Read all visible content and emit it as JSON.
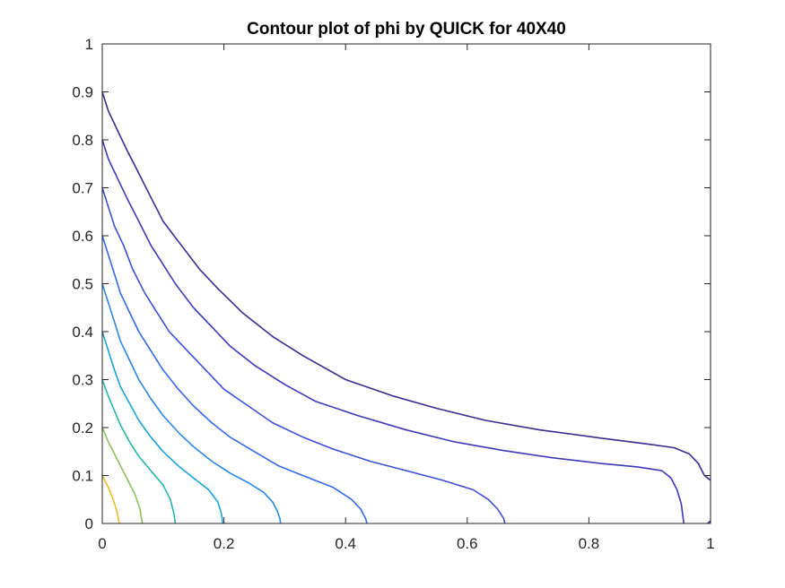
{
  "chart_data": {
    "type": "contour",
    "title": "Contour plot of phi by QUICK for 40X40",
    "xlabel": "",
    "ylabel": "",
    "xlim": [
      0,
      1
    ],
    "ylim": [
      0,
      1
    ],
    "xticks": [
      0,
      0.2,
      0.4,
      0.6,
      0.8,
      1
    ],
    "xtick_labels": [
      "0",
      "0.2",
      "0.4",
      "0.6",
      "0.8",
      "1"
    ],
    "yticks": [
      0,
      0.1,
      0.2,
      0.3,
      0.4,
      0.5,
      0.6,
      0.7,
      0.8,
      0.9,
      1
    ],
    "ytick_labels": [
      "0",
      "0.1",
      "0.2",
      "0.3",
      "0.4",
      "0.5",
      "0.6",
      "0.7",
      "0.8",
      "0.9",
      "1"
    ],
    "grid": false,
    "series": [
      {
        "color": "#3c2a92",
        "points": [
          [
            0,
            0.9
          ],
          [
            0.01,
            0.86
          ],
          [
            0.025,
            0.82
          ],
          [
            0.04,
            0.78
          ],
          [
            0.06,
            0.73
          ],
          [
            0.08,
            0.68
          ],
          [
            0.1,
            0.63
          ],
          [
            0.13,
            0.58
          ],
          [
            0.16,
            0.53
          ],
          [
            0.19,
            0.49
          ],
          [
            0.23,
            0.44
          ],
          [
            0.28,
            0.39
          ],
          [
            0.33,
            0.35
          ],
          [
            0.4,
            0.3
          ],
          [
            0.48,
            0.265
          ],
          [
            0.55,
            0.24
          ],
          [
            0.63,
            0.215
          ],
          [
            0.72,
            0.195
          ],
          [
            0.82,
            0.178
          ],
          [
            0.9,
            0.165
          ],
          [
            0.94,
            0.158
          ],
          [
            0.965,
            0.145
          ],
          [
            0.98,
            0.125
          ],
          [
            0.99,
            0.1
          ],
          [
            1,
            0.09
          ]
        ]
      },
      {
        "color": "#3e38b8",
        "points": [
          [
            0,
            0.8
          ],
          [
            0.01,
            0.76
          ],
          [
            0.025,
            0.72
          ],
          [
            0.04,
            0.68
          ],
          [
            0.06,
            0.63
          ],
          [
            0.08,
            0.58
          ],
          [
            0.1,
            0.54
          ],
          [
            0.12,
            0.5
          ],
          [
            0.15,
            0.45
          ],
          [
            0.18,
            0.41
          ],
          [
            0.21,
            0.37
          ],
          [
            0.25,
            0.33
          ],
          [
            0.3,
            0.29
          ],
          [
            0.35,
            0.255
          ],
          [
            0.42,
            0.225
          ],
          [
            0.5,
            0.195
          ],
          [
            0.58,
            0.17
          ],
          [
            0.66,
            0.152
          ],
          [
            0.74,
            0.137
          ],
          [
            0.82,
            0.125
          ],
          [
            0.88,
            0.118
          ],
          [
            0.92,
            0.11
          ],
          [
            0.935,
            0.095
          ],
          [
            0.945,
            0.07
          ],
          [
            0.952,
            0.04
          ],
          [
            0.955,
            0.01
          ],
          [
            0.956,
            0
          ]
        ]
      },
      {
        "color": "#3c4ed6",
        "points": [
          [
            0,
            0.7
          ],
          [
            0.01,
            0.66
          ],
          [
            0.02,
            0.62
          ],
          [
            0.035,
            0.58
          ],
          [
            0.05,
            0.53
          ],
          [
            0.07,
            0.48
          ],
          [
            0.09,
            0.44
          ],
          [
            0.11,
            0.4
          ],
          [
            0.14,
            0.36
          ],
          [
            0.17,
            0.32
          ],
          [
            0.2,
            0.28
          ],
          [
            0.24,
            0.245
          ],
          [
            0.28,
            0.21
          ],
          [
            0.33,
            0.18
          ],
          [
            0.38,
            0.155
          ],
          [
            0.44,
            0.13
          ],
          [
            0.5,
            0.11
          ],
          [
            0.56,
            0.09
          ],
          [
            0.61,
            0.07
          ],
          [
            0.635,
            0.05
          ],
          [
            0.65,
            0.03
          ],
          [
            0.66,
            0.01
          ],
          [
            0.662,
            0
          ]
        ]
      },
      {
        "color": "#3369e8",
        "points": [
          [
            0,
            0.6
          ],
          [
            0.01,
            0.56
          ],
          [
            0.02,
            0.52
          ],
          [
            0.03,
            0.48
          ],
          [
            0.045,
            0.44
          ],
          [
            0.06,
            0.4
          ],
          [
            0.08,
            0.36
          ],
          [
            0.1,
            0.32
          ],
          [
            0.125,
            0.28
          ],
          [
            0.15,
            0.245
          ],
          [
            0.18,
            0.21
          ],
          [
            0.21,
            0.18
          ],
          [
            0.25,
            0.15
          ],
          [
            0.29,
            0.12
          ],
          [
            0.34,
            0.095
          ],
          [
            0.38,
            0.075
          ],
          [
            0.41,
            0.05
          ],
          [
            0.425,
            0.03
          ],
          [
            0.433,
            0.01
          ],
          [
            0.435,
            0
          ]
        ]
      },
      {
        "color": "#2a86e6",
        "points": [
          [
            0,
            0.5
          ],
          [
            0.01,
            0.46
          ],
          [
            0.02,
            0.42
          ],
          [
            0.03,
            0.38
          ],
          [
            0.045,
            0.34
          ],
          [
            0.06,
            0.3
          ],
          [
            0.08,
            0.26
          ],
          [
            0.1,
            0.225
          ],
          [
            0.125,
            0.19
          ],
          [
            0.15,
            0.16
          ],
          [
            0.18,
            0.13
          ],
          [
            0.21,
            0.105
          ],
          [
            0.24,
            0.085
          ],
          [
            0.265,
            0.065
          ],
          [
            0.28,
            0.045
          ],
          [
            0.288,
            0.025
          ],
          [
            0.292,
            0.01
          ],
          [
            0.293,
            0
          ]
        ]
      },
      {
        "color": "#16a3d8",
        "points": [
          [
            0,
            0.4
          ],
          [
            0.01,
            0.36
          ],
          [
            0.02,
            0.32
          ],
          [
            0.03,
            0.285
          ],
          [
            0.045,
            0.25
          ],
          [
            0.06,
            0.215
          ],
          [
            0.08,
            0.18
          ],
          [
            0.1,
            0.15
          ],
          [
            0.125,
            0.12
          ],
          [
            0.15,
            0.095
          ],
          [
            0.175,
            0.07
          ],
          [
            0.19,
            0.045
          ],
          [
            0.196,
            0.02
          ],
          [
            0.198,
            0
          ]
        ]
      },
      {
        "color": "#23b4aa",
        "points": [
          [
            0,
            0.3
          ],
          [
            0.01,
            0.265
          ],
          [
            0.02,
            0.235
          ],
          [
            0.03,
            0.205
          ],
          [
            0.045,
            0.17
          ],
          [
            0.06,
            0.14
          ],
          [
            0.08,
            0.11
          ],
          [
            0.1,
            0.08
          ],
          [
            0.112,
            0.05
          ],
          [
            0.118,
            0.02
          ],
          [
            0.12,
            0
          ]
        ]
      },
      {
        "color": "#8cbe58",
        "points": [
          [
            0,
            0.2
          ],
          [
            0.01,
            0.17
          ],
          [
            0.02,
            0.145
          ],
          [
            0.03,
            0.12
          ],
          [
            0.042,
            0.09
          ],
          [
            0.054,
            0.06
          ],
          [
            0.062,
            0.03
          ],
          [
            0.066,
            0
          ]
        ]
      },
      {
        "color": "#e6ba30",
        "points": [
          [
            0,
            0.1
          ],
          [
            0.01,
            0.075
          ],
          [
            0.018,
            0.05
          ],
          [
            0.024,
            0.025
          ],
          [
            0.028,
            0
          ]
        ]
      },
      {
        "color": "#3c2a92",
        "points": [
          [
            0.995,
            0
          ],
          [
            1,
            0.005
          ]
        ]
      }
    ]
  }
}
